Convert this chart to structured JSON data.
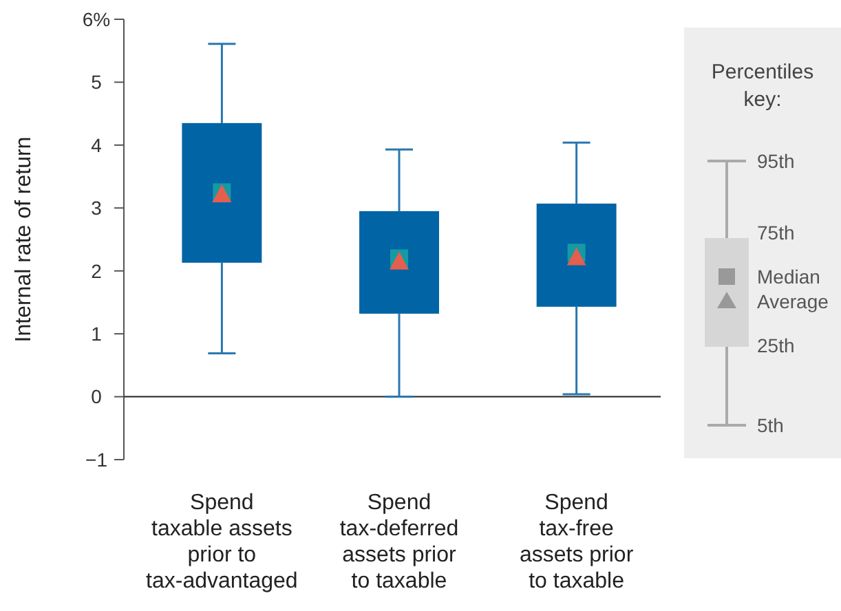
{
  "chart_data": {
    "type": "box",
    "ylabel": "Internal rate of return",
    "categories": [
      "Spend\ntaxable assets\nprior to\ntax-advantaged",
      "Spend\ntax-deferred\nassets prior\nto taxable",
      "Spend\ntax-free\nassets prior\nto taxable"
    ],
    "ylim": [
      -1,
      6
    ],
    "yticks": [
      {
        "value": -1,
        "label": "−1"
      },
      0,
      1,
      2,
      3,
      4,
      5,
      {
        "value": 6,
        "label": "6%"
      }
    ],
    "ref_lines": [
      {
        "axis": "y",
        "value": 0
      }
    ],
    "legend_title": "Percentiles key:",
    "annotations": [
      "95th",
      "75th",
      "Median",
      "Average",
      "25th",
      "5th"
    ],
    "series": [
      {
        "color": "#0064a5",
        "boxes": [
          {
            "low": 0.69,
            "q1": 2.13,
            "median": 3.25,
            "q3": 4.35,
            "high": 5.61,
            "mean": 3.2
          },
          {
            "low": 0,
            "q1": 1.32,
            "median": 2.2,
            "q3": 2.95,
            "high": 3.93,
            "mean": 2.13
          },
          {
            "low": 0.04,
            "q1": 1.43,
            "median": 2.29,
            "q3": 3.07,
            "high": 4.04,
            "mean": 2.2
          }
        ]
      }
    ]
  }
}
